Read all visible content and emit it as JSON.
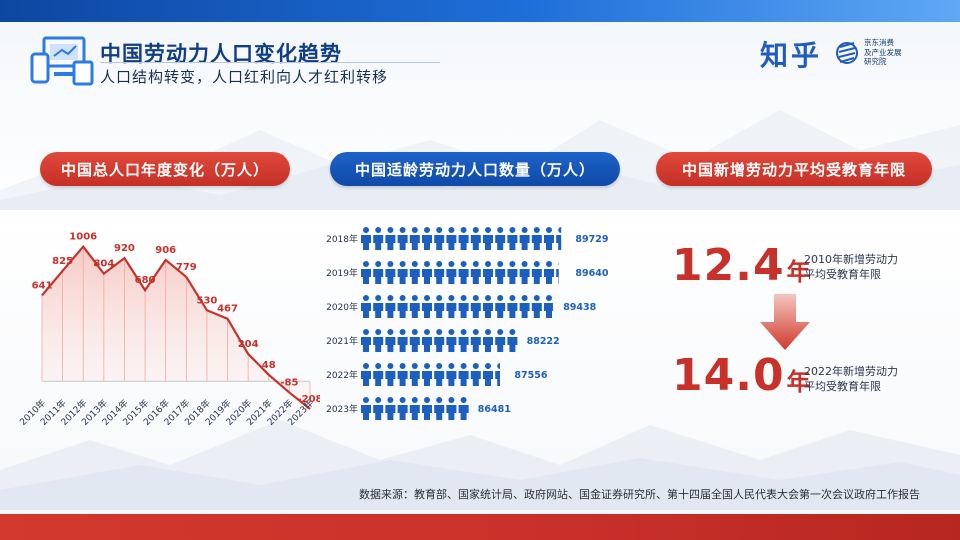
{
  "header": {
    "title": "中国劳动力人口变化趋势",
    "subtitle": "人口结构转变，人口红利向人才红利转移",
    "icon": "devices-icon"
  },
  "brand": {
    "name": "知乎",
    "sub_lines": [
      "京东消费",
      "及产业发展",
      "研究院"
    ]
  },
  "colors": {
    "primary_blue": "#1f5cc2",
    "accent_red": "#c8302a",
    "dark_text": "#1b2a4a"
  },
  "chart_data": [
    {
      "type": "area",
      "title": "中国总人口年度变化（万人）",
      "categories": [
        "2010年",
        "2011年",
        "2012年",
        "2013年",
        "2014年",
        "2015年",
        "2016年",
        "2017年",
        "2018年",
        "2019年",
        "2020年",
        "2021年",
        "2022年",
        "2023年"
      ],
      "values": [
        641,
        825,
        1006,
        804,
        920,
        680,
        906,
        779,
        530,
        467,
        204,
        48,
        -85,
        -208
      ],
      "data_labels": [
        "641",
        "825",
        "1006",
        "804",
        "920",
        "680",
        "906",
        "779",
        "530",
        "467",
        "204",
        "48",
        "-85",
        "-208"
      ],
      "ylim": [
        -260,
        1100
      ],
      "grid": false,
      "color": "#c8302a"
    },
    {
      "type": "bar",
      "title": "中国适龄劳动力人口数量（万人）",
      "categories": [
        "2018年",
        "2019年",
        "2020年",
        "2021年",
        "2022年",
        "2023年"
      ],
      "values": [
        89729,
        89640,
        89438,
        88222,
        87556,
        86481
      ],
      "data_labels": [
        "89729",
        "89640",
        "89438",
        "88222",
        "87556",
        "86481"
      ],
      "pictogram": "person-icon",
      "color": "#1d5fbf"
    },
    {
      "type": "table",
      "title": "中国新增劳动力平均受教育年限",
      "rows": [
        {
          "value": "12.4",
          "unit": "年",
          "desc_lines": [
            "2010年新增劳动力",
            "平均受教育年限"
          ]
        },
        {
          "value": "14.0",
          "unit": "年",
          "desc_lines": [
            "2022年新增劳动力",
            "平均受教育年限"
          ]
        }
      ]
    }
  ],
  "footer": {
    "source": "数据来源：教育部、国家统计局、政府网站、国金证券研究所、第十四届全国人民代表大会第一次会议政府工作报告"
  }
}
